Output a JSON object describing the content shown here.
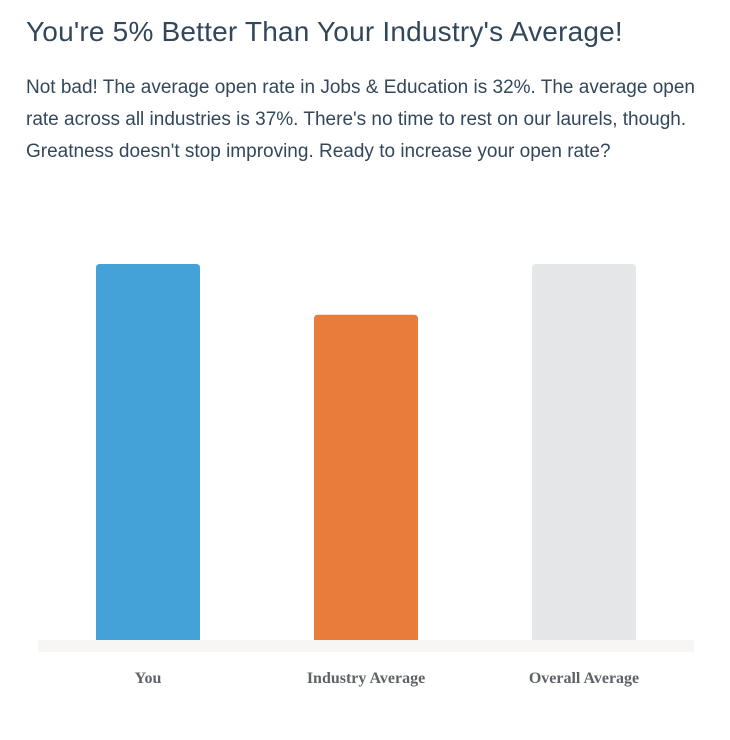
{
  "header": {
    "title": "You're 5% Better Than Your Industry's Average!"
  },
  "description": "Not bad! The average open rate in Jobs & Education is 32%. The average open rate across all industries is 37%. There's no time to rest on our laurels, though. Greatness doesn't stop improving. Ready to increase your open rate?",
  "chart_data": {
    "type": "bar",
    "categories": [
      "You",
      "Industry Average",
      "Overall Average"
    ],
    "values": [
      37,
      32,
      37
    ],
    "colors": [
      "#45a2d8",
      "#e97c3a",
      "#e5e6e8"
    ],
    "title": "",
    "xlabel": "",
    "ylabel": "",
    "ylim": [
      0,
      37
    ],
    "grid": false,
    "legend": "none"
  }
}
